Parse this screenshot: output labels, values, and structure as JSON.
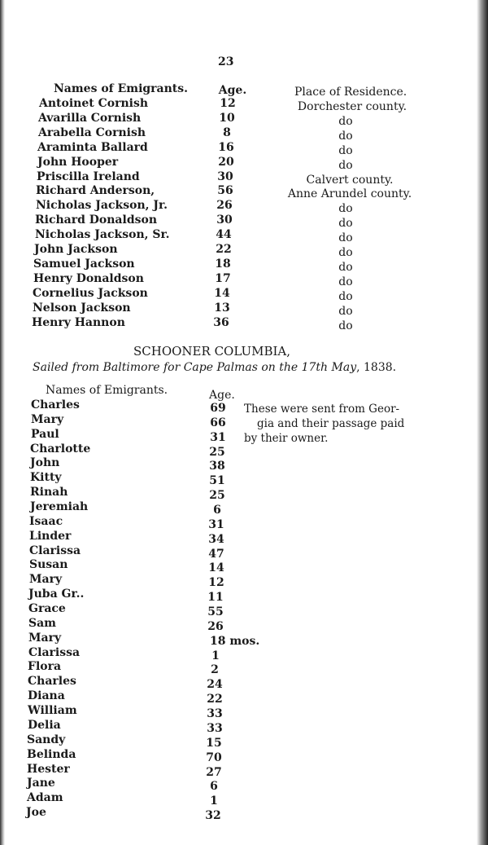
{
  "page_number": "23",
  "table1": {
    "headers": {
      "name": "Names of Emigrants.",
      "age": "Age.",
      "residence": "Place of Residence."
    },
    "rows": [
      {
        "name": "Antoinet Cornish",
        "age": "12",
        "residence": "Dorchester county."
      },
      {
        "name": "Avarilla Cornish",
        "age": "10",
        "residence": "do"
      },
      {
        "name": "Arabella Cornish",
        "age": "8",
        "residence": "do"
      },
      {
        "name": "Araminta Ballard",
        "age": "16",
        "residence": "do"
      },
      {
        "name": "John Hooper",
        "age": "20",
        "residence": "do"
      },
      {
        "name": "Priscilla Ireland",
        "age": "30",
        "residence": "Calvert county."
      },
      {
        "name": "Richard Anderson,",
        "age": "56",
        "residence": "Anne Arundel county."
      },
      {
        "name": "Nicholas Jackson, Jr.",
        "age": "26",
        "residence": "do"
      },
      {
        "name": "Richard Donaldson",
        "age": "30",
        "residence": "do"
      },
      {
        "name": "Nicholas Jackson, Sr.",
        "age": "44",
        "residence": "do"
      },
      {
        "name": "John Jackson",
        "age": "22",
        "residence": "do"
      },
      {
        "name": "Samuel Jackson",
        "age": "18",
        "residence": "do"
      },
      {
        "name": "Henry Donaldson",
        "age": "17",
        "residence": "do"
      },
      {
        "name": "Cornelius Jackson",
        "age": "14",
        "residence": "do"
      },
      {
        "name": "Nelson Jackson",
        "age": "13",
        "residence": "do"
      },
      {
        "name": "Henry Hannon",
        "age": "36",
        "residence": "do"
      }
    ]
  },
  "section2": {
    "title": "SCHOONER COLUMBIA,",
    "subtitle_parts": [
      "Sailed from Baltimore for Cape Palmas on the 17th May",
      ", 1838."
    ],
    "headers": {
      "name": "Names of Emigrants.",
      "age": "Age."
    },
    "note_lines": [
      "These were sent from Geor-",
      "gia and their passage paid",
      "by their owner."
    ],
    "rows": [
      {
        "name": "Charles",
        "age": "69"
      },
      {
        "name": "Mary",
        "age": "66"
      },
      {
        "name": "Paul",
        "age": "31"
      },
      {
        "name": "Charlotte",
        "age": "25"
      },
      {
        "name": "John",
        "age": "38"
      },
      {
        "name": "Kitty",
        "age": "51"
      },
      {
        "name": "Rinah",
        "age": "25"
      },
      {
        "name": "Jeremiah",
        "age": "6"
      },
      {
        "name": "Isaac",
        "age": "31"
      },
      {
        "name": "Linder",
        "age": "34"
      },
      {
        "name": "Clarissa",
        "age": "47"
      },
      {
        "name": "Susan",
        "age": "14"
      },
      {
        "name": "Mary",
        "age": "12"
      },
      {
        "name": "Juba Gr..",
        "age": "11"
      },
      {
        "name": "Grace",
        "age": "55"
      },
      {
        "name": "Sam",
        "age": "26"
      },
      {
        "name": "Mary",
        "age": "18 mos."
      },
      {
        "name": "Clarissa",
        "age": "1"
      },
      {
        "name": "Flora",
        "age": "2"
      },
      {
        "name": "Charles",
        "age": "24"
      },
      {
        "name": "Diana",
        "age": "22"
      },
      {
        "name": "William",
        "age": "33"
      },
      {
        "name": "Delia",
        "age": "33"
      },
      {
        "name": "Sandy",
        "age": "15"
      },
      {
        "name": "Belinda",
        "age": "70"
      },
      {
        "name": "Hester",
        "age": "27"
      },
      {
        "name": "Jane",
        "age": "6"
      },
      {
        "name": "Adam",
        "age": "1"
      },
      {
        "name": "Joe",
        "age": "32"
      }
    ]
  }
}
